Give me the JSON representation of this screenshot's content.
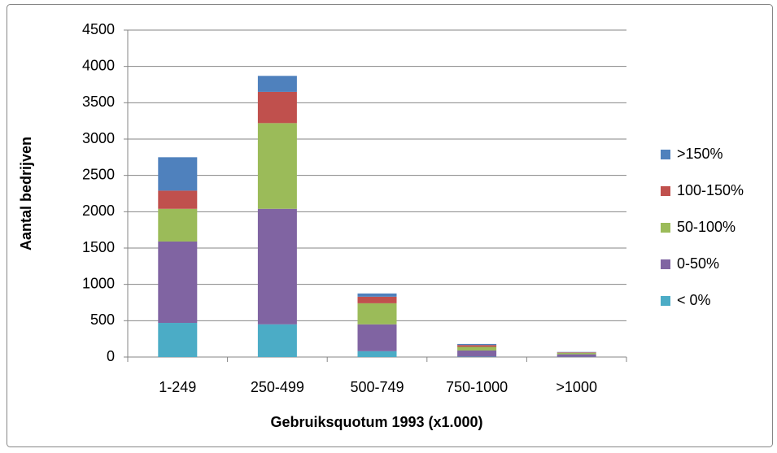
{
  "chart_data": {
    "type": "stacked_bar",
    "categories": [
      "1-249",
      "250-499",
      "500-749",
      "750-1000",
      ">1000"
    ],
    "series": [
      {
        "name": "< 0%",
        "color": "#4bacc6",
        "values": [
          470,
          450,
          80,
          5,
          3
        ]
      },
      {
        "name": "0-50%",
        "color": "#8064a2",
        "values": [
          1120,
          1590,
          370,
          85,
          35
        ]
      },
      {
        "name": "50-100%",
        "color": "#9bbb59",
        "values": [
          450,
          1180,
          290,
          50,
          20
        ]
      },
      {
        "name": "100-150%",
        "color": "#c0504d",
        "values": [
          250,
          430,
          90,
          25,
          7
        ]
      },
      {
        "name": ">150%",
        "color": "#4f81bd",
        "values": [
          460,
          220,
          45,
          15,
          5
        ]
      }
    ],
    "xlabel": "Gebruiksquotum 1993 (x1.000)",
    "ylabel": "Aantal bedrijven",
    "ylim": [
      0,
      4500
    ],
    "yticks": [
      0,
      500,
      1000,
      1500,
      2000,
      2500,
      3000,
      3500,
      4000,
      4500
    ],
    "grid": true,
    "legend": "right"
  }
}
